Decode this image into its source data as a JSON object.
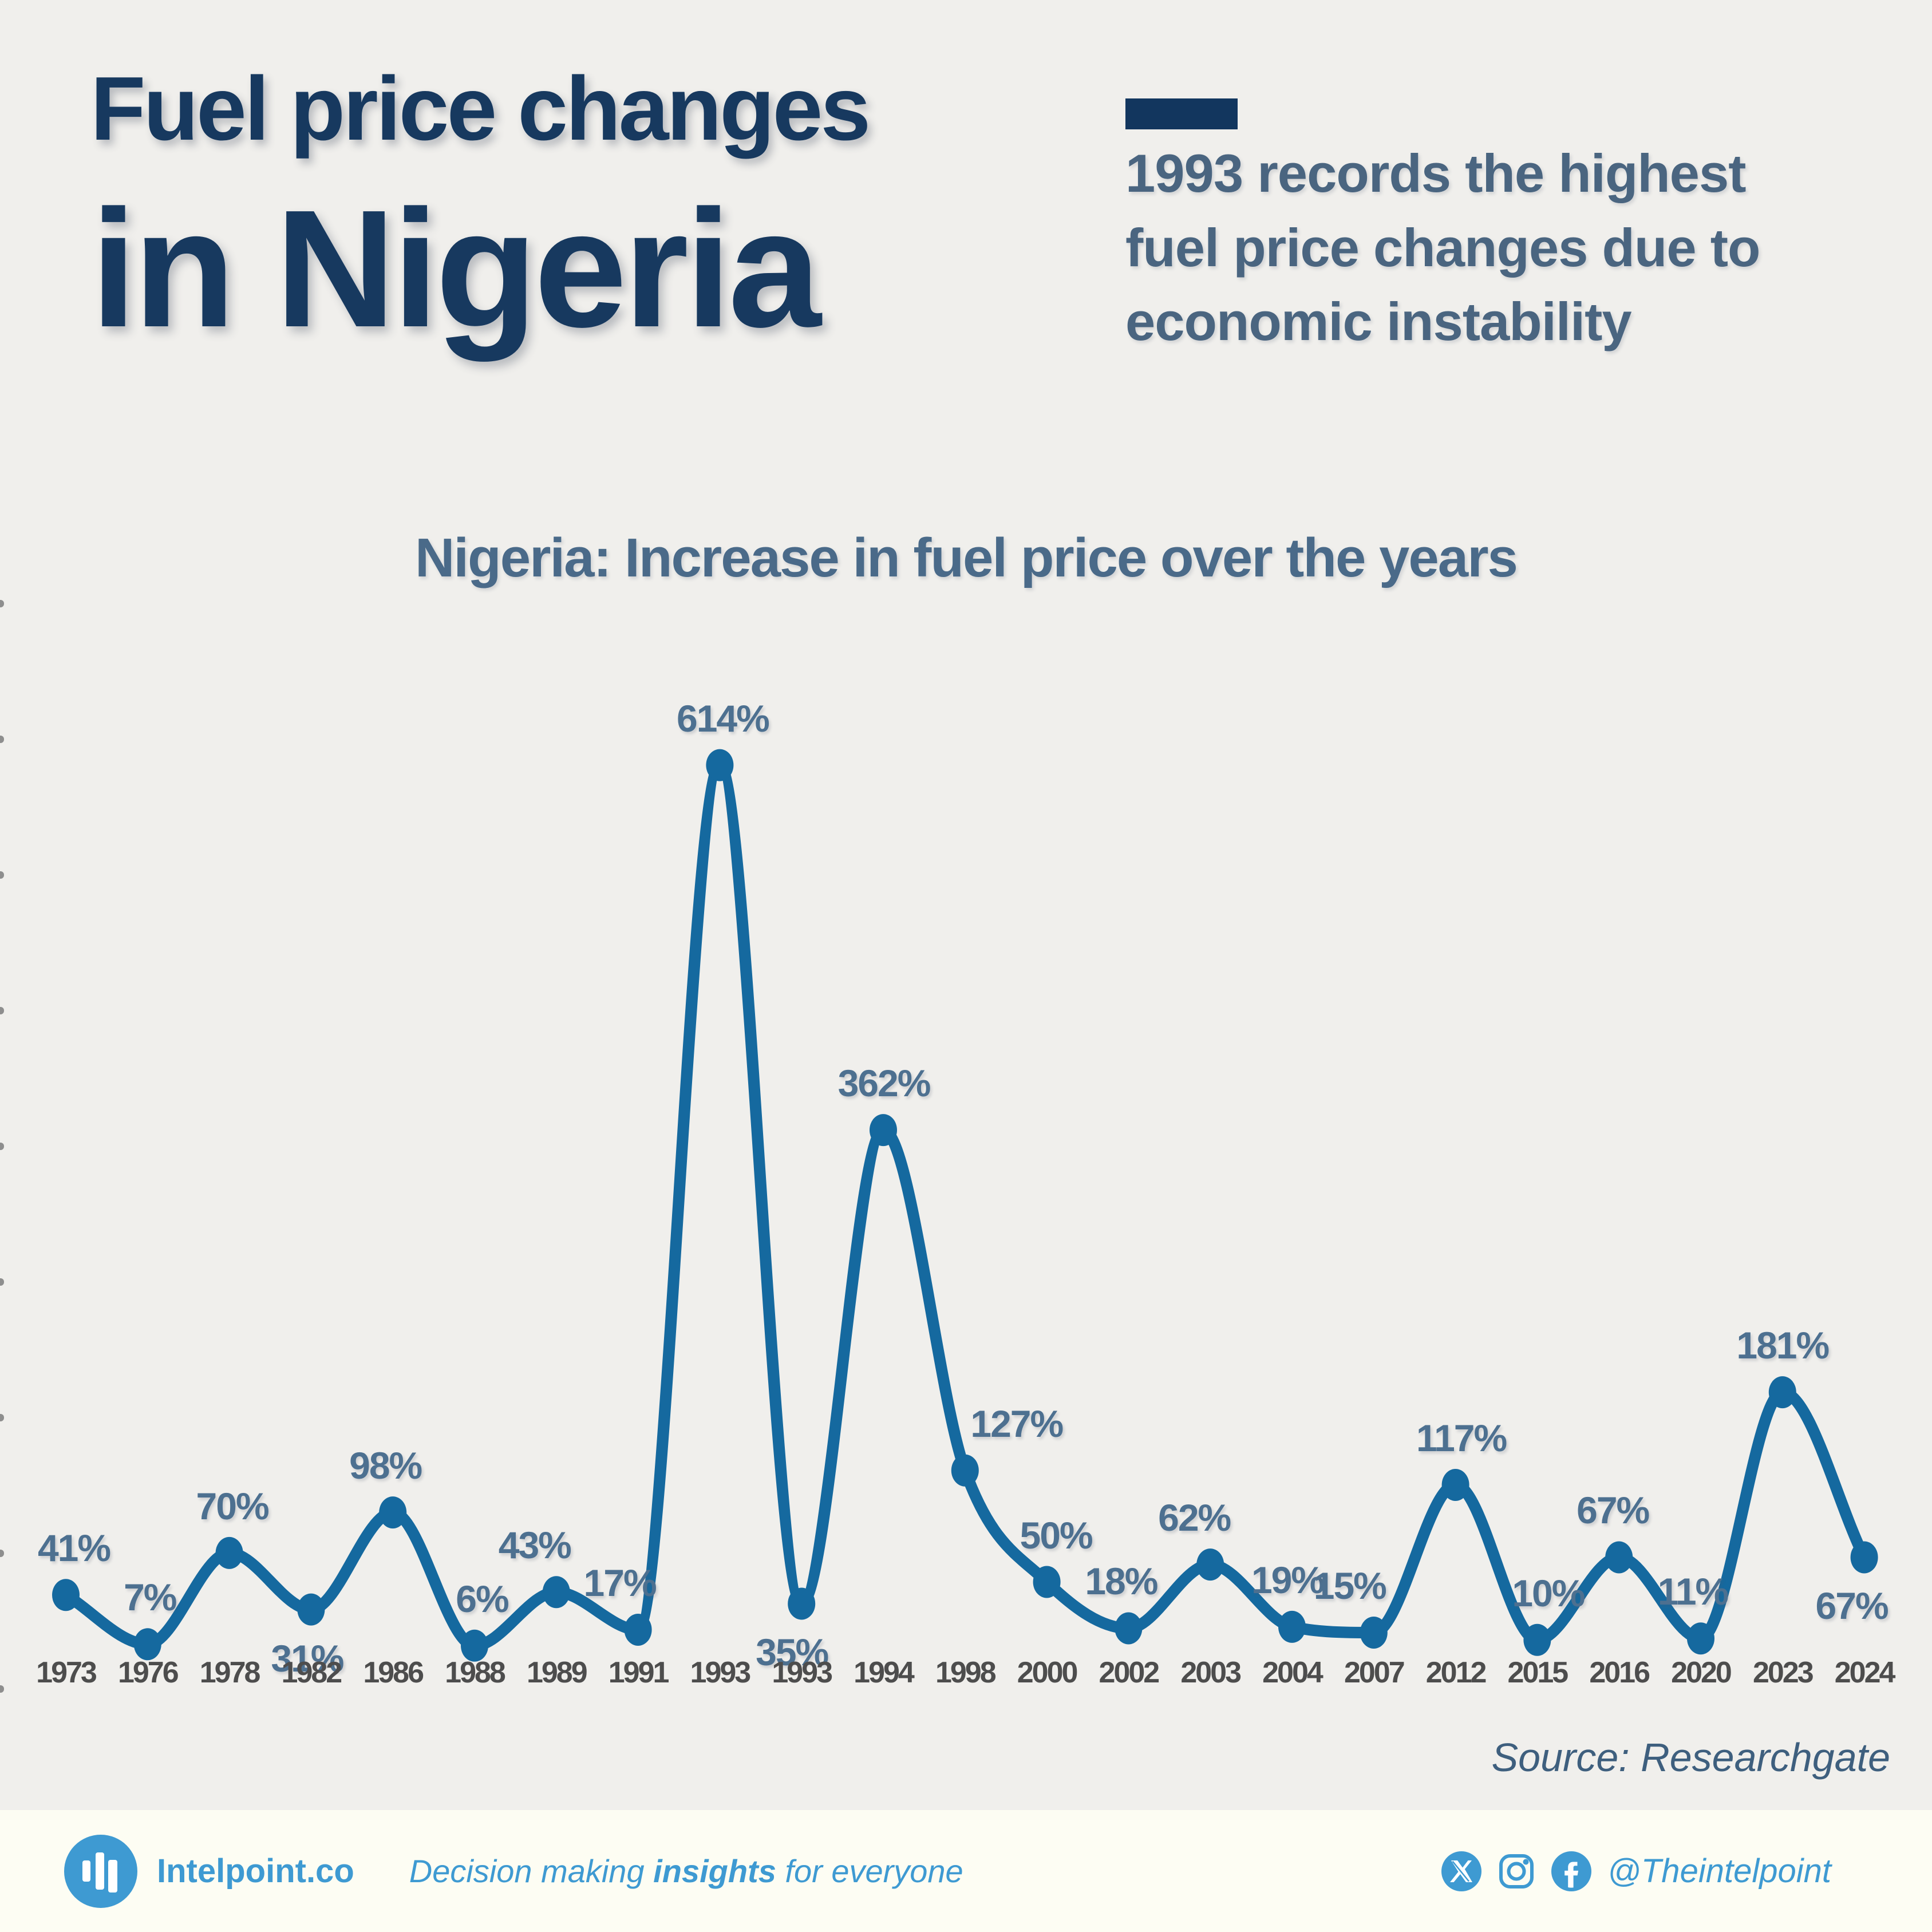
{
  "page": {
    "background": "#f0efec"
  },
  "header": {
    "title_line1": "Fuel price changes",
    "title_line2": "in Nigeria",
    "title_color": "#17395f",
    "callout_bar_color": "#12365e",
    "callout_text": "1993 records the highest\nfuel price changes due to\neconomic instability",
    "callout_color": "#4a6580"
  },
  "chart_data": {
    "type": "line",
    "title": "Nigeria: Increase in fuel price over the years",
    "unit": "%",
    "x": [
      "1973",
      "1976",
      "1978",
      "1982",
      "1986",
      "1988",
      "1989",
      "1991",
      "1993",
      "1993",
      "1994",
      "1998",
      "2000",
      "2002",
      "2003",
      "2004",
      "2007",
      "2012",
      "2015",
      "2016",
      "2020",
      "2023",
      "2024"
    ],
    "values": [
      41,
      7,
      70,
      31,
      98,
      6,
      43,
      17,
      614,
      35,
      362,
      127,
      50,
      18,
      62,
      19,
      15,
      117,
      10,
      67,
      11,
      181,
      67
    ],
    "ylim": [
      0,
      700
    ],
    "grid": false,
    "legend": false,
    "line_color": "#15699f",
    "point_label_color": "#4d7090",
    "axis_tick_color": "#4d4d4d",
    "y_tick_count": 9,
    "label_layout": [
      {
        "pos": "above",
        "dx": 14
      },
      {
        "pos": "above",
        "dx": 4
      },
      {
        "pos": "above",
        "dx": 5
      },
      {
        "pos": "below",
        "dx": -7
      },
      {
        "pos": "above",
        "dx": -13
      },
      {
        "pos": "above",
        "dx": 13
      },
      {
        "pos": "above",
        "dx": -38
      },
      {
        "pos": "above",
        "dx": -32
      },
      {
        "pos": "above",
        "dx": 5
      },
      {
        "pos": "below",
        "dx": -17
      },
      {
        "pos": "above",
        "dx": 1
      },
      {
        "pos": "above",
        "dx": 90
      },
      {
        "pos": "above",
        "dx": 16
      },
      {
        "pos": "above",
        "dx": -13
      },
      {
        "pos": "above",
        "dx": -28
      },
      {
        "pos": "above",
        "dx": -8
      },
      {
        "pos": "above",
        "dx": -42
      },
      {
        "pos": "above",
        "dx": 10
      },
      {
        "pos": "above",
        "dx": 19
      },
      {
        "pos": "above",
        "dx": -11
      },
      {
        "pos": "above",
        "dx": -14
      },
      {
        "pos": "above",
        "dx": 0
      },
      {
        "pos": "below",
        "dx": -22
      }
    ]
  },
  "source": {
    "text": "Source: Researchgate"
  },
  "footer": {
    "background": "#fdfdf3",
    "accent": "#3e9ad2",
    "brand": "Intelpoint.co",
    "tagline_prefix": "Decision making ",
    "tagline_bold": "insights",
    "tagline_suffix": " for everyone",
    "handle": "@Theintelpoint",
    "logo_icon": "bar-chart-icon",
    "social_icons": [
      "x-logo-icon",
      "instagram-icon",
      "facebook-icon"
    ]
  }
}
